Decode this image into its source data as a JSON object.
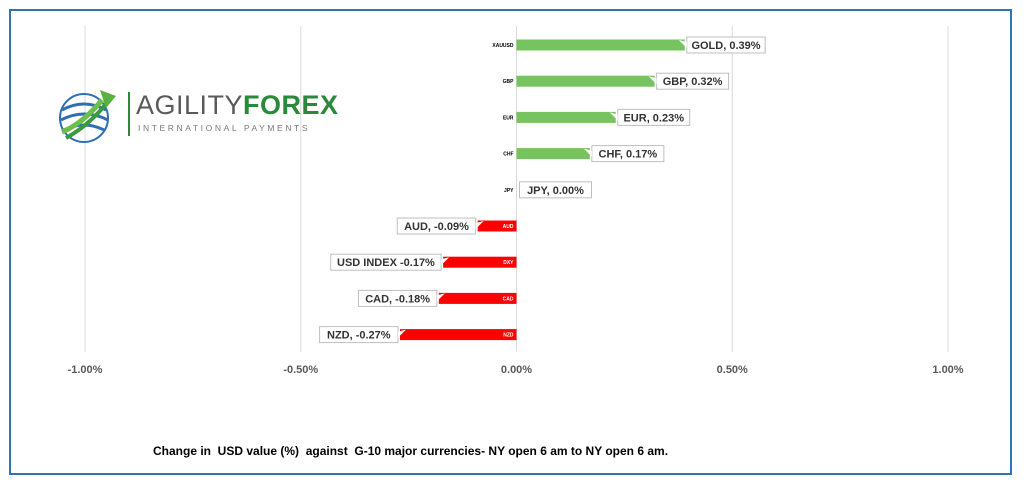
{
  "chart_data": {
    "type": "bar",
    "orientation": "horizontal",
    "categories": [
      "XAUUSD",
      "GBP",
      "EUR",
      "CHF",
      "JPY",
      "AUD",
      "DXY",
      "CAD",
      "NZD"
    ],
    "values": [
      0.39,
      0.32,
      0.23,
      0.17,
      0.0,
      -0.09,
      -0.17,
      -0.18,
      -0.27
    ],
    "data_labels": [
      "GOLD, 0.39%",
      "GBP, 0.32%",
      "EUR, 0.23%",
      "CHF, 0.17%",
      "JPY, 0.00%",
      "AUD, -0.09%",
      "USD INDEX -0.17%",
      "CAD, -0.18%",
      "NZD, -0.27%"
    ],
    "xlim": [
      -1.0,
      1.0
    ],
    "x_ticks": [
      -1.0,
      -0.5,
      0.0,
      0.5,
      1.0
    ],
    "x_tick_labels": [
      "-1.00%",
      "-0.50%",
      "0.00%",
      "0.50%",
      "1.00%"
    ],
    "grid": "vertical",
    "positive_color": "#77c35f",
    "negative_color": "#ff0000",
    "caption": "Change in  USD value (%)  against  G-10 major currencies- NY open 6 am to NY open 6 am."
  },
  "logo": {
    "name_part1": "AGILITY",
    "name_part2": "FOREX",
    "tagline": "INTERNATIONAL PAYMENTS"
  }
}
